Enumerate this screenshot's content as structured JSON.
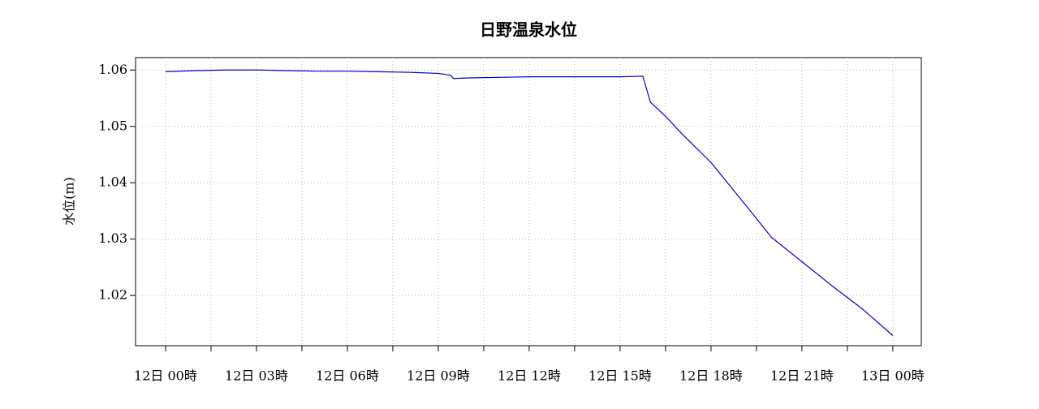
{
  "chart_data": {
    "type": "line",
    "title": "日野温泉水位",
    "y_label": "水位(m)",
    "x": [
      0,
      1,
      2,
      3,
      4,
      5,
      6,
      7,
      8,
      9,
      9.4,
      9.5,
      10,
      11,
      12,
      13,
      14,
      15,
      15.75,
      16,
      16.5,
      17,
      18,
      19,
      20,
      21,
      22,
      23,
      24
    ],
    "series": [
      {
        "name": "水位",
        "color": "#0000cc",
        "values": [
          1.0597,
          1.0599,
          1.06,
          1.06,
          1.0599,
          1.0598,
          1.0598,
          1.0597,
          1.0596,
          1.0594,
          1.0591,
          1.0585,
          1.0586,
          1.0587,
          1.0588,
          1.0588,
          1.0588,
          1.0588,
          1.0589,
          1.0543,
          1.0518,
          1.0489,
          1.0436,
          1.037,
          1.0303,
          1.026,
          1.0217,
          1.0176,
          1.0129
        ]
      }
    ],
    "xlim": [
      -0.99,
      24.94
    ],
    "ylim": [
      1.0111,
      1.0622
    ],
    "xticks": [
      {
        "value": 0,
        "label": "12日 00時"
      },
      {
        "value": 3,
        "label": "12日 03時"
      },
      {
        "value": 6,
        "label": "12日 06時"
      },
      {
        "value": 9,
        "label": "12日 09時"
      },
      {
        "value": 12,
        "label": "12日 12時"
      },
      {
        "value": 15,
        "label": "12日 15時"
      },
      {
        "value": 18,
        "label": "12日 18時"
      },
      {
        "value": 21,
        "label": "12日 21時"
      },
      {
        "value": 24,
        "label": "13日 00時"
      }
    ],
    "xminor_ticks": [
      1.5,
      4.5,
      7.5,
      10.5,
      13.5,
      16.5,
      19.5,
      22.5
    ],
    "yticks": [
      1.02,
      1.03,
      1.04,
      1.05,
      1.06
    ],
    "grid": true
  }
}
